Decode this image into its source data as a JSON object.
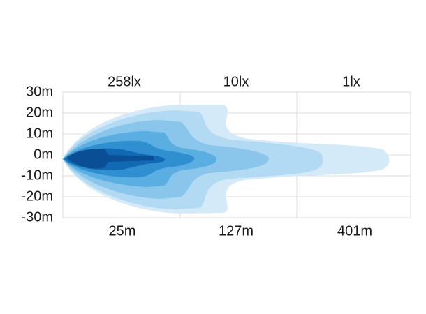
{
  "y_labels": [
    "30m",
    "20m",
    "10m",
    "0m",
    "-10m",
    "-20m",
    "-30m"
  ],
  "lux_labels": [
    "258lx",
    "10lx",
    "1lx"
  ],
  "distance_labels": [
    "25m",
    "127m",
    "401m"
  ]
}
